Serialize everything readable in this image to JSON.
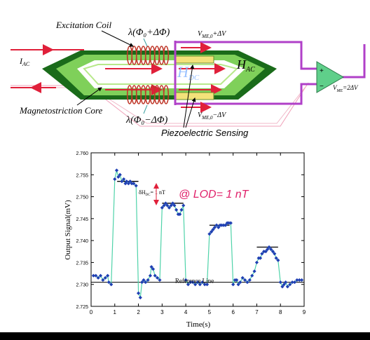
{
  "diagram": {
    "excitation_coil": "Excitation Coil",
    "lambda_plus": "λ(Φ₀+ΔΦ)",
    "lambda_minus": "λ(Φ₀−ΔΦ)",
    "v_me_plus": "V",
    "v_me_plus_sub": "ME,0",
    "v_me_plus_tail": "+ΔV",
    "v_me_minus": "V",
    "v_me_minus_sub": "ME,0",
    "v_me_minus_tail": "−ΔV",
    "i_ac": "I",
    "i_ac_sub": "AC",
    "h_dc": "H",
    "h_dc_sub": "DC",
    "h_ac": "H",
    "h_ac_sub": "AC",
    "v_out": "V",
    "v_out_sub": "ME",
    "v_out_tail": "=2ΔV",
    "magnetostriction_core": "Magnetostriction Core",
    "piezoelectric_sensing": "Piezoelectric Sensing",
    "colors": {
      "core_dark": "#1a6b1a",
      "core_light": "#7fd05a",
      "coil": "#c0392b",
      "wire": "#b040c8",
      "arrow_red": "#e0203a",
      "amp": "#5fcf8a"
    }
  },
  "chart_data": {
    "type": "scatter",
    "xlabel": "Time(s)",
    "ylabel": "Output Signal(mV)",
    "xlim": [
      0,
      9
    ],
    "ylim": [
      2.725,
      2.76
    ],
    "x_ticks": [
      0,
      1,
      2,
      3,
      4,
      5,
      6,
      7,
      8,
      9
    ],
    "y_ticks": [
      2.725,
      2.73,
      2.735,
      2.74,
      2.745,
      2.75,
      2.755,
      2.76
    ],
    "y_tick_labels": [
      "2.725",
      "2.730",
      "2.735",
      "2.740",
      "2.745",
      "2.750",
      "2.755",
      "2.760"
    ],
    "lod_annotation": "@ LOD= 1 nT",
    "delta_h_label": "δH",
    "delta_h_sub": "DC",
    "delta_h_tail": "= 1 nT",
    "reference_line_label": "Reference Line",
    "reference_value": 2.7305,
    "marker_color": "#1f3fb3",
    "connector_color": "#4fd3a9",
    "series": [
      {
        "points": [
          [
            0.1,
            2.732
          ],
          [
            0.2,
            2.732
          ],
          [
            0.3,
            2.7315
          ],
          [
            0.4,
            2.732
          ],
          [
            0.5,
            2.731
          ],
          [
            0.6,
            2.7315
          ],
          [
            0.7,
            2.732
          ],
          [
            0.75,
            2.7305
          ],
          [
            0.85,
            2.73
          ],
          [
            1.0,
            2.754
          ],
          [
            1.08,
            2.756
          ],
          [
            1.15,
            2.7545
          ],
          [
            1.22,
            2.755
          ],
          [
            1.3,
            2.7535
          ],
          [
            1.38,
            2.754
          ],
          [
            1.45,
            2.753
          ],
          [
            1.5,
            2.7535
          ],
          [
            1.58,
            2.753
          ],
          [
            1.65,
            2.7535
          ],
          [
            1.72,
            2.753
          ],
          [
            1.8,
            2.753
          ],
          [
            1.9,
            2.7525
          ],
          [
            2.0,
            2.728
          ],
          [
            2.08,
            2.727
          ],
          [
            2.15,
            2.7305
          ],
          [
            2.22,
            2.731
          ],
          [
            2.3,
            2.7305
          ],
          [
            2.4,
            2.731
          ],
          [
            2.5,
            2.732
          ],
          [
            2.55,
            2.734
          ],
          [
            2.62,
            2.7335
          ],
          [
            2.7,
            2.732
          ],
          [
            2.8,
            2.7315
          ],
          [
            2.9,
            2.731
          ],
          [
            3.0,
            2.7475
          ],
          [
            3.08,
            2.748
          ],
          [
            3.15,
            2.7485
          ],
          [
            3.22,
            2.748
          ],
          [
            3.3,
            2.7475
          ],
          [
            3.38,
            2.748
          ],
          [
            3.45,
            2.7485
          ],
          [
            3.52,
            2.748
          ],
          [
            3.6,
            2.747
          ],
          [
            3.68,
            2.746
          ],
          [
            3.75,
            2.746
          ],
          [
            3.82,
            2.747
          ],
          [
            3.9,
            2.748
          ],
          [
            4.0,
            2.731
          ],
          [
            4.1,
            2.73
          ],
          [
            4.2,
            2.7305
          ],
          [
            4.3,
            2.7305
          ],
          [
            4.4,
            2.73
          ],
          [
            4.5,
            2.7305
          ],
          [
            4.6,
            2.73
          ],
          [
            4.7,
            2.7305
          ],
          [
            4.8,
            2.73
          ],
          [
            4.9,
            2.73
          ],
          [
            5.0,
            2.7415
          ],
          [
            5.08,
            2.742
          ],
          [
            5.15,
            2.7425
          ],
          [
            5.22,
            2.743
          ],
          [
            5.3,
            2.7435
          ],
          [
            5.38,
            2.743
          ],
          [
            5.45,
            2.7435
          ],
          [
            5.52,
            2.7435
          ],
          [
            5.6,
            2.7435
          ],
          [
            5.68,
            2.7435
          ],
          [
            5.75,
            2.744
          ],
          [
            5.82,
            2.744
          ],
          [
            5.9,
            2.744
          ],
          [
            6.0,
            2.73
          ],
          [
            6.08,
            2.731
          ],
          [
            6.15,
            2.731
          ],
          [
            6.22,
            2.73
          ],
          [
            6.3,
            2.7305
          ],
          [
            6.4,
            2.7315
          ],
          [
            6.5,
            2.731
          ],
          [
            6.6,
            2.7305
          ],
          [
            6.7,
            2.731
          ],
          [
            6.8,
            2.732
          ],
          [
            6.9,
            2.733
          ],
          [
            7.0,
            2.735
          ],
          [
            7.08,
            2.736
          ],
          [
            7.15,
            2.736
          ],
          [
            7.22,
            2.737
          ],
          [
            7.3,
            2.7375
          ],
          [
            7.38,
            2.7375
          ],
          [
            7.45,
            2.738
          ],
          [
            7.52,
            2.7385
          ],
          [
            7.6,
            2.738
          ],
          [
            7.68,
            2.7375
          ],
          [
            7.75,
            2.737
          ],
          [
            7.82,
            2.736
          ],
          [
            7.9,
            2.7355
          ],
          [
            8.0,
            2.7305
          ],
          [
            8.08,
            2.7295
          ],
          [
            8.15,
            2.73
          ],
          [
            8.22,
            2.7305
          ],
          [
            8.3,
            2.7295
          ],
          [
            8.4,
            2.73
          ],
          [
            8.5,
            2.7305
          ],
          [
            8.6,
            2.7305
          ],
          [
            8.7,
            2.731
          ],
          [
            8.8,
            2.731
          ],
          [
            8.9,
            2.731
          ]
        ]
      }
    ],
    "step_levels": [
      {
        "x0": 1.1,
        "x1": 2.0,
        "y": 2.7535
      },
      {
        "x0": 3.0,
        "x1": 3.9,
        "y": 2.7485
      },
      {
        "x0": 5.0,
        "x1": 5.85,
        "y": 2.7435
      },
      {
        "x0": 7.0,
        "x1": 7.9,
        "y": 2.7385
      }
    ]
  }
}
